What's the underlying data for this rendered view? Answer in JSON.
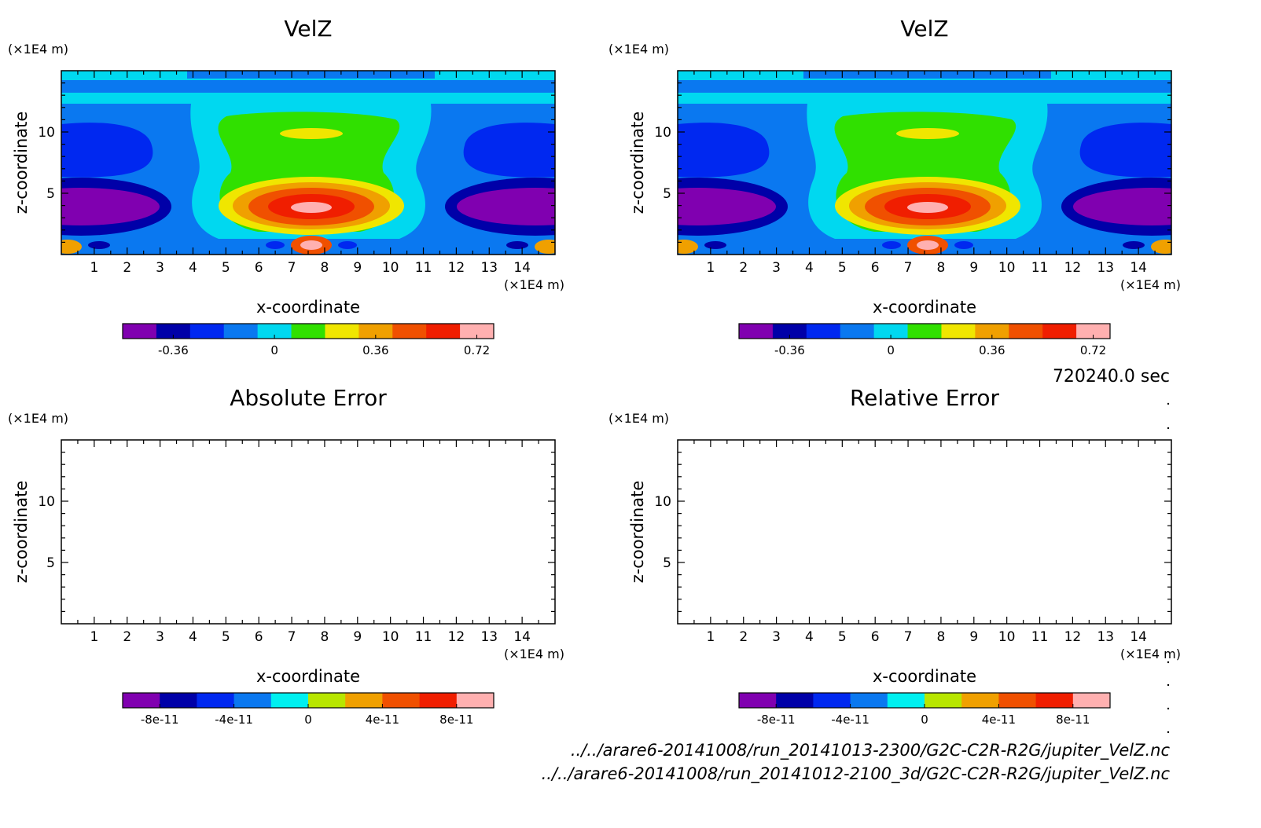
{
  "chart_data": [
    {
      "type": "heatmap",
      "title": "VelZ",
      "xlabel": "x-coordinate",
      "ylabel": "z-coordinate",
      "x_unit": "(×1E4 m)",
      "y_unit": "(×1E4 m)",
      "xlim": [
        0,
        15
      ],
      "ylim": [
        0,
        15
      ],
      "xticks": [
        "1",
        "2",
        "3",
        "4",
        "5",
        "6",
        "7",
        "8",
        "9",
        "10",
        "11",
        "12",
        "13",
        "14"
      ],
      "yticks": [
        "5",
        "10"
      ],
      "colorbar": {
        "levels": 11,
        "labels": [
          "-0.36",
          "0",
          "0.36",
          "0.72"
        ],
        "colors": [
          "#8000b0",
          "#0000a8",
          "#0028f0",
          "#0a78f0",
          "#00d8f0",
          "#30e000",
          "#f0e600",
          "#f0a000",
          "#f05000",
          "#f01e00",
          "#ffb0b0"
        ]
      }
    },
    {
      "type": "heatmap",
      "title": "VelZ",
      "xlabel": "x-coordinate",
      "ylabel": "z-coordinate",
      "x_unit": "(×1E4 m)",
      "y_unit": "(×1E4 m)",
      "xlim": [
        0,
        15
      ],
      "ylim": [
        0,
        15
      ],
      "xticks": [
        "1",
        "2",
        "3",
        "4",
        "5",
        "6",
        "7",
        "8",
        "9",
        "10",
        "11",
        "12",
        "13",
        "14"
      ],
      "yticks": [
        "5",
        "10"
      ],
      "colorbar": {
        "levels": 11,
        "labels": [
          "-0.36",
          "0",
          "0.36",
          "0.72"
        ],
        "colors": [
          "#8000b0",
          "#0000a8",
          "#0028f0",
          "#0a78f0",
          "#00d8f0",
          "#30e000",
          "#f0e600",
          "#f0a000",
          "#f05000",
          "#f01e00",
          "#ffb0b0"
        ]
      }
    },
    {
      "type": "heatmap",
      "title": "Absolute Error",
      "xlabel": "x-coordinate",
      "ylabel": "z-coordinate",
      "x_unit": "(×1E4 m)",
      "y_unit": "(×1E4 m)",
      "xlim": [
        0,
        15
      ],
      "ylim": [
        0,
        15
      ],
      "xticks": [
        "1",
        "2",
        "3",
        "4",
        "5",
        "6",
        "7",
        "8",
        "9",
        "10",
        "11",
        "12",
        "13",
        "14"
      ],
      "yticks": [
        "5",
        "10"
      ],
      "colorbar": {
        "levels": 10,
        "labels": [
          "-8e-11",
          "-4e-11",
          "0",
          "4e-11",
          "8e-11"
        ],
        "colors": [
          "#8000b0",
          "#0000a8",
          "#0028f0",
          "#0a78f0",
          "#00f0f0",
          "#b8e600",
          "#f0a000",
          "#f05000",
          "#f01e00",
          "#ffb0b0"
        ]
      }
    },
    {
      "type": "heatmap",
      "title": "Relative Error",
      "xlabel": "x-coordinate",
      "ylabel": "z-coordinate",
      "x_unit": "(×1E4 m)",
      "y_unit": "(×1E4 m)",
      "xlim": [
        0,
        15
      ],
      "ylim": [
        0,
        15
      ],
      "xticks": [
        "1",
        "2",
        "3",
        "4",
        "5",
        "6",
        "7",
        "8",
        "9",
        "10",
        "11",
        "12",
        "13",
        "14"
      ],
      "yticks": [
        "5",
        "10"
      ],
      "colorbar": {
        "levels": 10,
        "labels": [
          "-8e-11",
          "-4e-11",
          "0",
          "4e-11",
          "8e-11"
        ],
        "colors": [
          "#8000b0",
          "#0000a8",
          "#0028f0",
          "#0a78f0",
          "#00f0f0",
          "#b8e600",
          "#f0a000",
          "#f05000",
          "#f01e00",
          "#ffb0b0"
        ]
      }
    }
  ],
  "time_label": "720240.0 sec",
  "footer_lines": [
    "../../arare6-20141008/run_20141013-2300/G2C-C2R-R2G/jupiter_VelZ.nc",
    "../../arare6-20141008/run_20141012-2100_3d/G2C-C2R-R2G/jupiter_VelZ.nc"
  ]
}
